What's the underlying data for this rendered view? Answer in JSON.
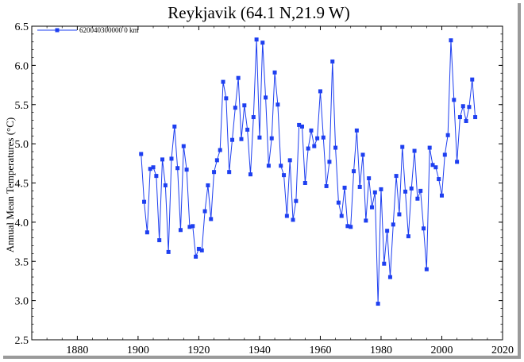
{
  "chart_data": {
    "type": "line",
    "title": "Reykjavik (64.1 N,21.9 W)",
    "xlabel": "",
    "ylabel": "Annual Mean Temperatures (°C)",
    "xlim": [
      1865,
      2020
    ],
    "ylim": [
      2.5,
      6.5
    ],
    "x_ticks": [
      1880,
      1900,
      1920,
      1940,
      1960,
      1980,
      2000,
      2020
    ],
    "y_ticks": [
      2.5,
      3.0,
      3.5,
      4.0,
      4.5,
      5.0,
      5.5,
      6.0,
      6.5
    ],
    "grid": false,
    "legend_position": "top-left",
    "series": [
      {
        "name": "620040300000  0 km",
        "color": "#1e3ff0",
        "marker": "square",
        "x": [
          1901,
          1902,
          1903,
          1904,
          1905,
          1906,
          1907,
          1908,
          1909,
          1910,
          1911,
          1912,
          1913,
          1914,
          1915,
          1916,
          1917,
          1918,
          1919,
          1920,
          1921,
          1922,
          1923,
          1924,
          1925,
          1926,
          1927,
          1928,
          1929,
          1930,
          1931,
          1932,
          1933,
          1934,
          1935,
          1936,
          1937,
          1938,
          1939,
          1940,
          1941,
          1942,
          1943,
          1944,
          1945,
          1946,
          1947,
          1948,
          1949,
          1950,
          1951,
          1952,
          1953,
          1954,
          1955,
          1956,
          1957,
          1958,
          1959,
          1960,
          1961,
          1962,
          1963,
          1964,
          1965,
          1966,
          1967,
          1968,
          1969,
          1970,
          1971,
          1972,
          1973,
          1974,
          1975,
          1976,
          1977,
          1978,
          1979,
          1980,
          1981,
          1982,
          1983,
          1984,
          1985,
          1986,
          1987,
          1988,
          1989,
          1990,
          1991,
          1992,
          1993,
          1994,
          1995,
          1996,
          1997,
          1998,
          1999,
          2000,
          2001,
          2002,
          2003,
          2004,
          2005,
          2006,
          2007,
          2008,
          2009,
          2010,
          2011
        ],
        "y": [
          4.87,
          4.26,
          3.87,
          4.68,
          4.7,
          4.59,
          3.77,
          4.8,
          4.47,
          3.62,
          4.81,
          5.22,
          4.69,
          3.9,
          4.97,
          4.67,
          3.94,
          3.95,
          3.56,
          3.66,
          3.64,
          4.14,
          4.47,
          4.04,
          4.64,
          4.79,
          4.92,
          5.79,
          5.58,
          4.64,
          5.05,
          5.46,
          5.84,
          5.06,
          5.49,
          5.18,
          4.61,
          5.34,
          6.33,
          5.08,
          6.29,
          5.59,
          4.72,
          5.07,
          5.91,
          5.5,
          4.72,
          4.6,
          4.08,
          4.79,
          4.03,
          4.27,
          5.24,
          5.22,
          4.5,
          4.94,
          5.17,
          4.97,
          5.07,
          5.67,
          5.08,
          4.46,
          4.77,
          6.05,
          4.95,
          4.25,
          4.08,
          4.44,
          3.95,
          3.94,
          4.65,
          5.17,
          4.45,
          4.86,
          4.02,
          4.56,
          4.19,
          4.38,
          2.96,
          4.42,
          3.47,
          3.89,
          3.3,
          3.97,
          4.59,
          4.1,
          4.96,
          4.39,
          3.82,
          4.43,
          4.91,
          4.3,
          4.4,
          3.92,
          3.4,
          4.95,
          4.73,
          4.7,
          4.55,
          4.34,
          4.86,
          5.11,
          6.32,
          5.56,
          4.77,
          5.34,
          5.48,
          5.29,
          5.47,
          5.82,
          5.34
        ]
      }
    ]
  }
}
